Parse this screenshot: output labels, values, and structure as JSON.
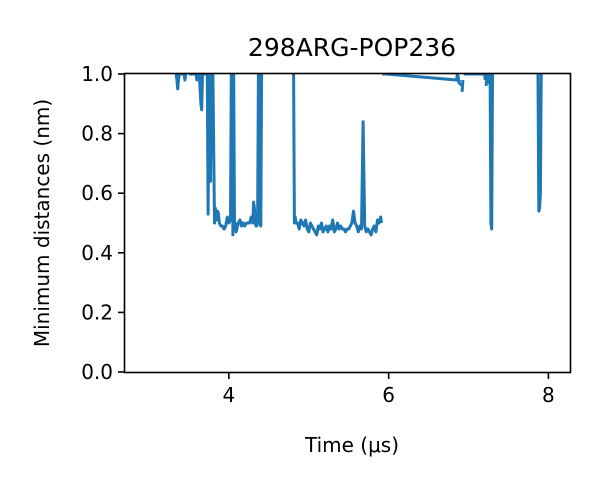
{
  "chart_data": {
    "type": "line",
    "title": "298ARG-POP236",
    "xlabel": "Time (μs)",
    "ylabel": "Minimum distances (nm)",
    "xlim": [
      2.7,
      8.27
    ],
    "ylim": [
      0.0,
      1.0
    ],
    "x_ticks": [
      "4",
      "6",
      "8"
    ],
    "y_ticks": [
      "0.0",
      "0.2",
      "0.4",
      "0.6",
      "0.8",
      "1.0"
    ],
    "grid": false,
    "color": "#1f77b4",
    "series": [
      {
        "x": [
          3.34,
          3.35,
          3.36,
          3.37,
          3.38,
          3.4,
          3.43,
          3.44,
          3.45,
          3.46,
          3.5,
          3.52,
          3.55,
          3.59,
          3.6,
          3.63,
          3.65,
          3.66,
          3.67,
          3.69,
          3.7,
          3.72,
          3.73,
          3.74,
          3.75,
          3.76,
          3.77,
          3.78,
          3.79,
          3.8,
          3.82,
          3.83,
          3.84,
          3.85,
          3.86,
          3.87,
          3.88,
          3.9,
          3.92,
          3.94,
          3.96,
          3.98,
          4.0,
          4.02,
          4.03,
          4.04,
          4.05,
          4.06,
          4.07,
          4.08,
          4.09,
          4.1,
          4.12,
          4.14,
          4.16,
          4.18,
          4.2,
          4.22,
          4.24,
          4.26,
          4.28,
          4.3,
          4.31,
          4.32,
          4.33,
          4.34,
          4.35,
          4.36,
          4.37,
          4.38,
          4.39,
          4.4,
          4.41,
          4.8,
          4.81,
          4.82,
          4.83,
          4.84,
          4.86,
          4.88,
          4.9,
          4.92,
          4.94,
          4.96,
          4.98,
          5.0,
          5.02,
          5.04,
          5.06,
          5.08,
          5.1,
          5.12,
          5.14,
          5.16,
          5.18,
          5.2,
          5.22,
          5.24,
          5.26,
          5.28,
          5.3,
          5.32,
          5.34,
          5.36,
          5.38,
          5.4,
          5.42,
          5.44,
          5.46,
          5.48,
          5.5,
          5.52,
          5.54,
          5.56,
          5.58,
          5.6,
          5.62,
          5.64,
          5.66,
          5.68,
          5.7,
          5.72,
          5.74,
          5.76,
          5.78,
          5.8,
          5.82,
          5.84,
          5.86,
          5.88,
          5.9,
          5.91,
          5.92,
          5.93,
          5.94,
          5.95,
          5.96,
          5.97,
          6.85,
          6.86,
          6.87,
          6.88,
          6.89,
          6.9,
          6.91,
          6.92,
          6.93,
          6.94,
          6.95,
          6.96,
          7.18,
          7.19,
          7.2,
          7.21,
          7.22,
          7.23,
          7.24,
          7.25,
          7.26,
          7.27,
          7.28,
          7.29,
          7.3,
          7.31,
          7.87,
          7.88,
          7.89,
          7.9,
          7.91
        ],
        "y": [
          1.0,
          0.98,
          0.95,
          0.98,
          1.0,
          1.0,
          1.0,
          1.0,
          0.98,
          1.0,
          1.0,
          1.0,
          1.0,
          1.0,
          0.98,
          1.0,
          0.9,
          0.88,
          1.0,
          1.0,
          1.0,
          1.0,
          1.0,
          0.53,
          1.0,
          0.68,
          0.64,
          1.0,
          1.0,
          1.0,
          0.5,
          0.55,
          0.52,
          0.51,
          0.54,
          0.53,
          0.5,
          0.49,
          0.49,
          0.48,
          0.49,
          0.52,
          0.5,
          0.51,
          1.0,
          1.0,
          0.46,
          1.0,
          0.49,
          0.5,
          0.47,
          0.48,
          0.5,
          0.51,
          0.49,
          0.5,
          0.49,
          0.5,
          0.5,
          0.5,
          0.52,
          0.5,
          0.57,
          0.55,
          0.5,
          0.49,
          0.49,
          0.5,
          1.0,
          1.0,
          0.5,
          0.49,
          1.0,
          1.0,
          1.0,
          0.5,
          0.52,
          0.5,
          0.5,
          0.48,
          0.51,
          0.5,
          0.49,
          0.51,
          0.48,
          0.47,
          0.5,
          0.49,
          0.48,
          0.47,
          0.46,
          0.49,
          0.48,
          0.5,
          0.47,
          0.48,
          0.49,
          0.47,
          0.49,
          0.48,
          0.51,
          0.47,
          0.48,
          0.5,
          0.48,
          0.49,
          0.48,
          0.48,
          0.47,
          0.48,
          0.48,
          0.49,
          0.5,
          0.54,
          0.5,
          0.49,
          0.47,
          0.49,
          0.48,
          0.84,
          0.49,
          0.47,
          0.48,
          0.47,
          0.46,
          0.48,
          0.49,
          0.47,
          0.51,
          0.5,
          0.52,
          0.5,
          1.0,
          1.0,
          1.0,
          1.0,
          1.0,
          1.0,
          0.98,
          1.0,
          0.99,
          0.97,
          0.98,
          0.96,
          0.97,
          0.94,
          0.98,
          1.0,
          1.0,
          1.0,
          1.0,
          1.0,
          1.0,
          0.98,
          0.96,
          0.99,
          1.0,
          1.0,
          0.97,
          1.0,
          0.5,
          0.48,
          1.0,
          1.0,
          1.0,
          0.54,
          0.55,
          0.6,
          1.0
        ],
        "segments": [
          [
            0,
            6
          ],
          [
            7,
            9
          ],
          [
            10,
            72
          ],
          [
            73,
            131
          ],
          [
            132,
            142
          ],
          [
            143,
            144
          ],
          [
            145,
            146
          ],
          [
            147,
            153
          ],
          [
            154,
            163
          ],
          [
            164,
            168
          ]
        ]
      }
    ]
  }
}
